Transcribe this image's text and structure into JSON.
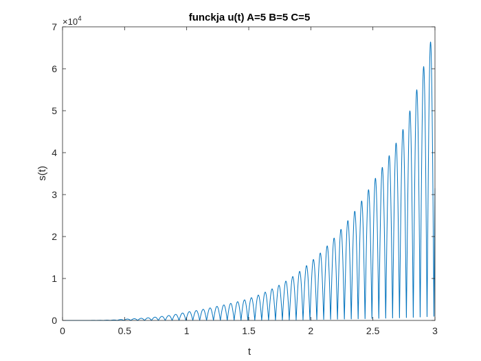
{
  "chart_data": {
    "type": "line",
    "title": "funckja u(t) A=5 B=5 C=5",
    "xlabel": "t",
    "ylabel": "s(t)",
    "y_exponent_label": "×10",
    "y_exponent_power": "4",
    "xlim": [
      0,
      3
    ],
    "ylim": [
      0,
      70000
    ],
    "x_ticks": [
      0,
      0.5,
      1,
      1.5,
      2,
      2.5,
      3
    ],
    "x_tick_labels": [
      "0",
      "0.5",
      "1",
      "1.5",
      "2",
      "2.5",
      "3"
    ],
    "y_ticks": [
      0,
      10000,
      20000,
      30000,
      40000,
      50000,
      60000,
      70000
    ],
    "y_tick_labels": [
      "0",
      "1",
      "2",
      "3",
      "4",
      "5",
      "6",
      "7"
    ],
    "grid": false,
    "series_color": "#0072BD",
    "envelope_peaks": {
      "t": [
        0,
        0.5,
        0.75,
        1.0,
        1.25,
        1.5,
        1.75,
        2.0,
        2.25,
        2.5,
        2.75,
        2.95,
        3.0
      ],
      "s": [
        0,
        300,
        800,
        2000,
        3400,
        5200,
        8500,
        14000,
        22000,
        33000,
        46000,
        65000,
        70000
      ]
    },
    "series": [
      {
        "oscillation_period": 0.0555,
        "first_peak_t": 2.964,
        "values": "absolute value of an oscillating signal with exponentially growing amplitude"
      }
    ]
  }
}
